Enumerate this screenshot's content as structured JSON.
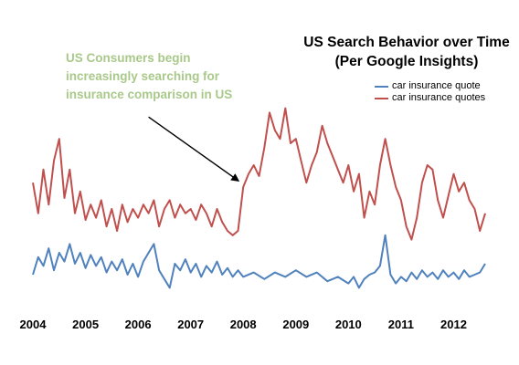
{
  "chart_data": {
    "type": "line",
    "title": "US Search Behavior over Time",
    "subtitle": "(Per Google Insights)",
    "annotation": "US Consumers begin increasingly searching for insurance comparison in US",
    "xlabel": "",
    "ylabel": "",
    "x_ticks": [
      "2004",
      "2005",
      "2006",
      "2007",
      "2008",
      "2009",
      "2010",
      "2011",
      "2012"
    ],
    "x_range": [
      2004.0,
      2012.6
    ],
    "y_range": [
      0,
      100
    ],
    "grid": false,
    "legend_position": "top-right",
    "arrow": {
      "from": [
        2006.2,
        82
      ],
      "to": [
        2007.9,
        53
      ]
    },
    "series": [
      {
        "name": "car insurance quote",
        "color": "#4f81bd",
        "points": [
          [
            2004.0,
            10
          ],
          [
            2004.1,
            18
          ],
          [
            2004.2,
            14
          ],
          [
            2004.3,
            22
          ],
          [
            2004.4,
            12
          ],
          [
            2004.5,
            20
          ],
          [
            2004.6,
            16
          ],
          [
            2004.7,
            24
          ],
          [
            2004.8,
            15
          ],
          [
            2004.9,
            20
          ],
          [
            2005.0,
            13
          ],
          [
            2005.1,
            19
          ],
          [
            2005.2,
            14
          ],
          [
            2005.3,
            18
          ],
          [
            2005.4,
            11
          ],
          [
            2005.5,
            16
          ],
          [
            2005.6,
            12
          ],
          [
            2005.7,
            17
          ],
          [
            2005.8,
            10
          ],
          [
            2005.9,
            15
          ],
          [
            2006.0,
            9
          ],
          [
            2006.1,
            16
          ],
          [
            2006.2,
            20
          ],
          [
            2006.3,
            24
          ],
          [
            2006.4,
            12
          ],
          [
            2006.5,
            8
          ],
          [
            2006.6,
            4
          ],
          [
            2006.7,
            15
          ],
          [
            2006.8,
            12
          ],
          [
            2006.9,
            17
          ],
          [
            2007.0,
            11
          ],
          [
            2007.1,
            15
          ],
          [
            2007.2,
            9
          ],
          [
            2007.3,
            14
          ],
          [
            2007.4,
            11
          ],
          [
            2007.5,
            16
          ],
          [
            2007.6,
            10
          ],
          [
            2007.7,
            13
          ],
          [
            2007.8,
            9
          ],
          [
            2007.9,
            12
          ],
          [
            2008.0,
            9
          ],
          [
            2008.2,
            11
          ],
          [
            2008.4,
            8
          ],
          [
            2008.6,
            11
          ],
          [
            2008.8,
            9
          ],
          [
            2009.0,
            12
          ],
          [
            2009.2,
            9
          ],
          [
            2009.4,
            11
          ],
          [
            2009.6,
            7
          ],
          [
            2009.8,
            9
          ],
          [
            2010.0,
            6
          ],
          [
            2010.1,
            9
          ],
          [
            2010.2,
            4
          ],
          [
            2010.3,
            8
          ],
          [
            2010.4,
            10
          ],
          [
            2010.5,
            11
          ],
          [
            2010.6,
            14
          ],
          [
            2010.7,
            28
          ],
          [
            2010.8,
            10
          ],
          [
            2010.9,
            6
          ],
          [
            2011.0,
            9
          ],
          [
            2011.1,
            7
          ],
          [
            2011.2,
            11
          ],
          [
            2011.3,
            8
          ],
          [
            2011.4,
            12
          ],
          [
            2011.5,
            9
          ],
          [
            2011.6,
            11
          ],
          [
            2011.7,
            8
          ],
          [
            2011.8,
            12
          ],
          [
            2011.9,
            9
          ],
          [
            2012.0,
            11
          ],
          [
            2012.1,
            8
          ],
          [
            2012.2,
            12
          ],
          [
            2012.3,
            9
          ],
          [
            2012.4,
            10
          ],
          [
            2012.5,
            11
          ],
          [
            2012.6,
            15
          ]
        ]
      },
      {
        "name": "car insurance quotes",
        "color": "#c0504d",
        "points": [
          [
            2004.0,
            52
          ],
          [
            2004.1,
            38
          ],
          [
            2004.2,
            58
          ],
          [
            2004.3,
            42
          ],
          [
            2004.4,
            62
          ],
          [
            2004.5,
            72
          ],
          [
            2004.6,
            45
          ],
          [
            2004.7,
            58
          ],
          [
            2004.8,
            38
          ],
          [
            2004.9,
            48
          ],
          [
            2005.0,
            35
          ],
          [
            2005.1,
            42
          ],
          [
            2005.2,
            36
          ],
          [
            2005.3,
            44
          ],
          [
            2005.4,
            32
          ],
          [
            2005.5,
            40
          ],
          [
            2005.6,
            30
          ],
          [
            2005.7,
            42
          ],
          [
            2005.8,
            34
          ],
          [
            2005.9,
            40
          ],
          [
            2006.0,
            36
          ],
          [
            2006.1,
            42
          ],
          [
            2006.2,
            38
          ],
          [
            2006.3,
            44
          ],
          [
            2006.4,
            32
          ],
          [
            2006.5,
            40
          ],
          [
            2006.6,
            44
          ],
          [
            2006.7,
            36
          ],
          [
            2006.8,
            42
          ],
          [
            2006.9,
            38
          ],
          [
            2007.0,
            40
          ],
          [
            2007.1,
            35
          ],
          [
            2007.2,
            42
          ],
          [
            2007.3,
            38
          ],
          [
            2007.4,
            32
          ],
          [
            2007.5,
            40
          ],
          [
            2007.6,
            34
          ],
          [
            2007.7,
            30
          ],
          [
            2007.8,
            28
          ],
          [
            2007.9,
            30
          ],
          [
            2008.0,
            50
          ],
          [
            2008.1,
            56
          ],
          [
            2008.2,
            60
          ],
          [
            2008.3,
            55
          ],
          [
            2008.4,
            68
          ],
          [
            2008.5,
            84
          ],
          [
            2008.6,
            76
          ],
          [
            2008.7,
            72
          ],
          [
            2008.8,
            86
          ],
          [
            2008.9,
            70
          ],
          [
            2009.0,
            72
          ],
          [
            2009.1,
            62
          ],
          [
            2009.2,
            52
          ],
          [
            2009.3,
            60
          ],
          [
            2009.4,
            66
          ],
          [
            2009.5,
            78
          ],
          [
            2009.6,
            70
          ],
          [
            2009.7,
            64
          ],
          [
            2009.8,
            58
          ],
          [
            2009.9,
            52
          ],
          [
            2010.0,
            60
          ],
          [
            2010.1,
            48
          ],
          [
            2010.2,
            56
          ],
          [
            2010.3,
            36
          ],
          [
            2010.4,
            48
          ],
          [
            2010.5,
            42
          ],
          [
            2010.6,
            60
          ],
          [
            2010.7,
            72
          ],
          [
            2010.8,
            60
          ],
          [
            2010.9,
            50
          ],
          [
            2011.0,
            44
          ],
          [
            2011.1,
            32
          ],
          [
            2011.2,
            26
          ],
          [
            2011.3,
            36
          ],
          [
            2011.4,
            52
          ],
          [
            2011.5,
            60
          ],
          [
            2011.6,
            58
          ],
          [
            2011.7,
            44
          ],
          [
            2011.8,
            36
          ],
          [
            2011.9,
            46
          ],
          [
            2012.0,
            56
          ],
          [
            2012.1,
            48
          ],
          [
            2012.2,
            52
          ],
          [
            2012.3,
            44
          ],
          [
            2012.4,
            40
          ],
          [
            2012.5,
            30
          ],
          [
            2012.6,
            38
          ]
        ]
      }
    ]
  }
}
